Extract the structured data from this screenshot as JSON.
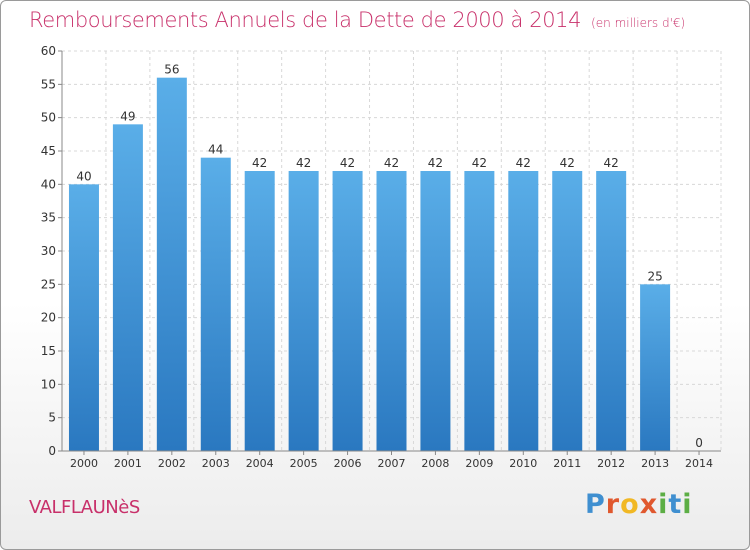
{
  "title": "Remboursements Annuels de la Dette de 2000 à 2014",
  "unit": "(en milliers d'€)",
  "commune": "VALFLAUNèS",
  "logo": {
    "letters": [
      {
        "ch": "P",
        "color": "#3f8fd0"
      },
      {
        "ch": "r",
        "color": "#e0582e"
      },
      {
        "ch": "o",
        "color": "#f1b824"
      },
      {
        "ch": "x",
        "color": "#e0582e"
      },
      {
        "ch": "i",
        "color": "#5cae45"
      },
      {
        "ch": "t",
        "color": "#3f8fd0"
      },
      {
        "ch": "i",
        "color": "#5cae45"
      }
    ]
  },
  "chart_data": {
    "type": "bar",
    "categories": [
      "2000",
      "2001",
      "2002",
      "2003",
      "2004",
      "2005",
      "2006",
      "2007",
      "2008",
      "2009",
      "2010",
      "2011",
      "2012",
      "2013",
      "2014"
    ],
    "values": [
      40,
      49,
      56,
      44,
      42,
      42,
      42,
      42,
      42,
      42,
      42,
      42,
      42,
      25,
      0
    ],
    "ylim": [
      0,
      60
    ],
    "yticks": [
      0,
      5,
      10,
      15,
      20,
      25,
      30,
      35,
      40,
      45,
      50,
      55,
      60
    ],
    "grid": true,
    "bar_color": "#3a8fd6"
  }
}
